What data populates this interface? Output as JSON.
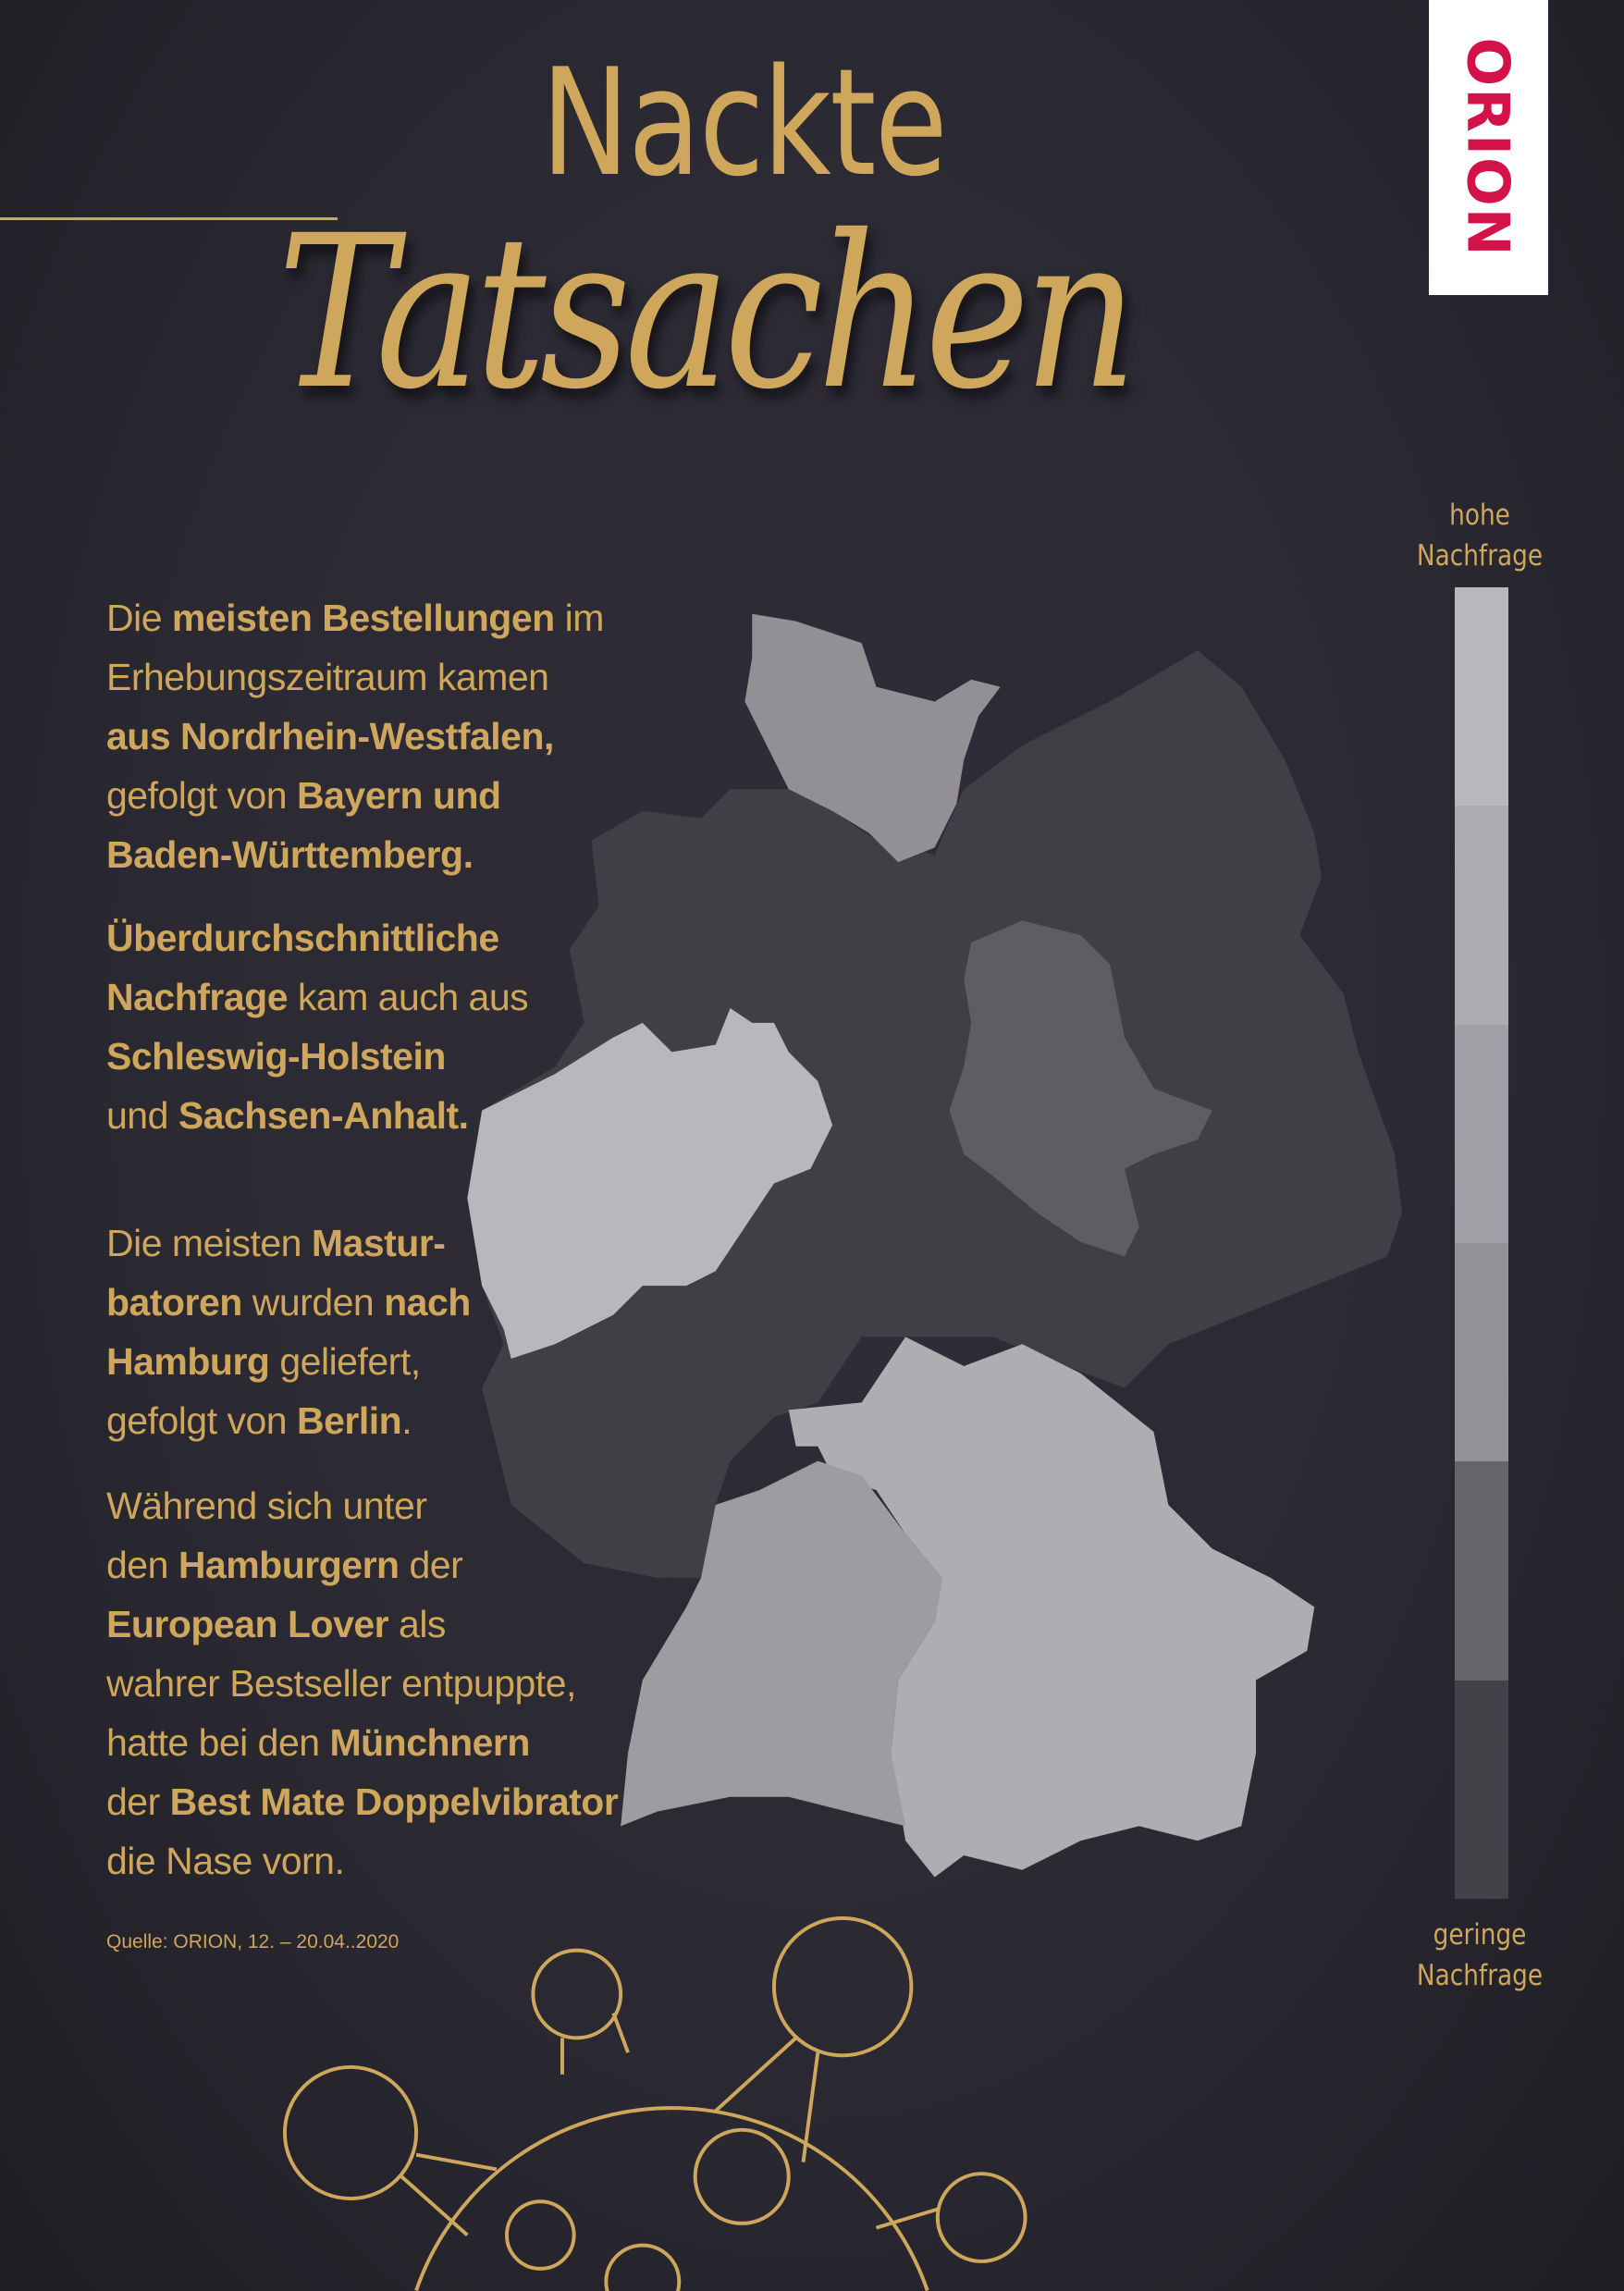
{
  "title": {
    "line1": "Nackte",
    "line2": "Tatsachen"
  },
  "logo": {
    "text": "ORION",
    "color": "#d3124a"
  },
  "legend": {
    "high_label": "hohe Nachfrage",
    "low_label": "geringe Nachfrage",
    "colors_high_to_low": [
      "#b9b7bc",
      "#aeabb0",
      "#a19fa5",
      "#939096",
      "#67656a",
      "#434248"
    ]
  },
  "map": {
    "regions": [
      {
        "name": "Nordrhein-Westfalen",
        "demand_level": 1,
        "color": "#b9b7bc"
      },
      {
        "name": "Bayern",
        "demand_level": 2,
        "color": "#b0adb2"
      },
      {
        "name": "Baden-Württemberg",
        "demand_level": 3,
        "color": "#9e9ca1"
      },
      {
        "name": "Schleswig-Holstein",
        "demand_level": 4,
        "color": "#929095"
      },
      {
        "name": "Sachsen-Anhalt",
        "demand_level": 5,
        "color": "#5e5d62"
      },
      {
        "name": "Übrige Bundesländer",
        "demand_level": 6,
        "color": "#3f3f45"
      }
    ]
  },
  "paragraphs": [
    [
      [
        {
          "t": "Die ",
          "b": false
        },
        {
          "t": "meisten Bestellungen",
          "b": true
        },
        {
          "t": " im",
          "b": false
        }
      ],
      [
        {
          "t": "Erhebungszeitraum kamen",
          "b": false
        }
      ],
      [
        {
          "t": "aus Nordrhein-Westfalen,",
          "b": true
        }
      ],
      [
        {
          "t": "gefolgt von ",
          "b": false
        },
        {
          "t": "Bayern und",
          "b": true
        }
      ],
      [
        {
          "t": "Baden-Württemberg.",
          "b": true
        }
      ]
    ],
    [
      [
        {
          "t": "Überdurchschnittliche",
          "b": true
        }
      ],
      [
        {
          "t": "Nachfrage",
          "b": true
        },
        {
          "t": " kam auch aus",
          "b": false
        }
      ],
      [
        {
          "t": "Schleswig-Holstein",
          "b": true
        }
      ],
      [
        {
          "t": "und ",
          "b": false
        },
        {
          "t": "Sachsen-Anhalt.",
          "b": true
        }
      ]
    ],
    [
      [
        {
          "t": "Die meisten ",
          "b": false
        },
        {
          "t": "Mastur-",
          "b": true
        }
      ],
      [
        {
          "t": "batoren",
          "b": true
        },
        {
          "t": " wurden ",
          "b": false
        },
        {
          "t": "nach",
          "b": true
        }
      ],
      [
        {
          "t": "Hamburg",
          "b": true
        },
        {
          "t": " geliefert,",
          "b": false
        }
      ],
      [
        {
          "t": "gefolgt von ",
          "b": false
        },
        {
          "t": "Berlin",
          "b": true
        },
        {
          "t": ".",
          "b": false
        }
      ]
    ],
    [
      [
        {
          "t": "Während sich unter",
          "b": false
        }
      ],
      [
        {
          "t": "den ",
          "b": false
        },
        {
          "t": "Hamburgern",
          "b": true
        },
        {
          "t": " der",
          "b": false
        }
      ],
      [
        {
          "t": "European Lover",
          "b": true
        },
        {
          "t": " als",
          "b": false
        }
      ],
      [
        {
          "t": "wahrer Bestseller entpuppte,",
          "b": false
        }
      ],
      [
        {
          "t": "hatte bei den ",
          "b": false
        },
        {
          "t": "Münchnern",
          "b": true
        }
      ],
      [
        {
          "t": "der ",
          "b": false
        },
        {
          "t": "Best Mate Doppelvibrator",
          "b": true
        }
      ],
      [
        {
          "t": "die Nase vorn.",
          "b": false
        }
      ]
    ]
  ],
  "source": "Quelle: ORION, 12. – 20.04..2020",
  "colors": {
    "accent": "#cfa75c",
    "background": "#2c2a33"
  }
}
